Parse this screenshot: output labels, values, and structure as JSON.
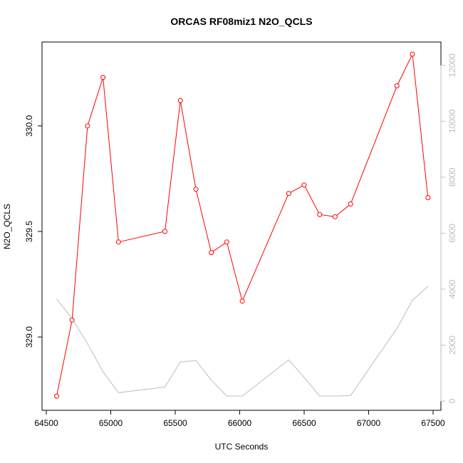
{
  "chart_data": {
    "type": "line",
    "title": "ORCAS RF08miz1 N2O_QCLS",
    "xlabel": "UTC Seconds",
    "ylabel": "N2O_QCLS",
    "xlim": [
      64500,
      67500
    ],
    "ylim": [
      328.69,
      330.34
    ],
    "y2lim": [
      -100,
      12400
    ],
    "grid": false,
    "x_ticks": [
      64500,
      65000,
      65500,
      66000,
      66500,
      67000,
      67500
    ],
    "x_tick_labels": [
      "64500",
      "65000",
      "65500",
      "66000",
      "66500",
      "67000",
      "67500"
    ],
    "y_ticks": [
      329.0,
      329.5,
      330.0
    ],
    "y_tick_labels": [
      "329.0",
      "329.5",
      "330.0"
    ],
    "y2_ticks": [
      0,
      2000,
      4000,
      6000,
      8000,
      10000,
      12000
    ],
    "y2_tick_labels": [
      "0",
      "2000",
      "4000",
      "6000",
      "8000",
      "10000",
      "12000"
    ],
    "series": [
      {
        "axis": "left",
        "color": "#ff0000",
        "marker": "open-circle",
        "x": [
          64580,
          64700,
          64820,
          64940,
          65060,
          65420,
          65540,
          65660,
          65780,
          65900,
          66020,
          66380,
          66500,
          66620,
          66740,
          66860,
          67220,
          67340,
          67460
        ],
        "values": [
          328.72,
          329.08,
          330.0,
          330.23,
          329.45,
          329.5,
          330.12,
          329.7,
          329.4,
          329.45,
          329.17,
          329.68,
          329.72,
          329.58,
          329.57,
          329.63,
          330.19,
          330.34,
          329.66
        ]
      },
      {
        "axis": "right",
        "color": "#bebebe",
        "marker": "none",
        "x": [
          64580,
          64700,
          64820,
          64940,
          65060,
          65420,
          65540,
          65660,
          65780,
          65900,
          66020,
          66380,
          66500,
          66620,
          66740,
          66860,
          67220,
          67340,
          67460
        ],
        "values": [
          3650,
          2950,
          2050,
          1050,
          300,
          500,
          1400,
          1450,
          750,
          180,
          180,
          1470,
          850,
          180,
          180,
          200,
          2600,
          3600,
          4100
        ]
      }
    ]
  }
}
